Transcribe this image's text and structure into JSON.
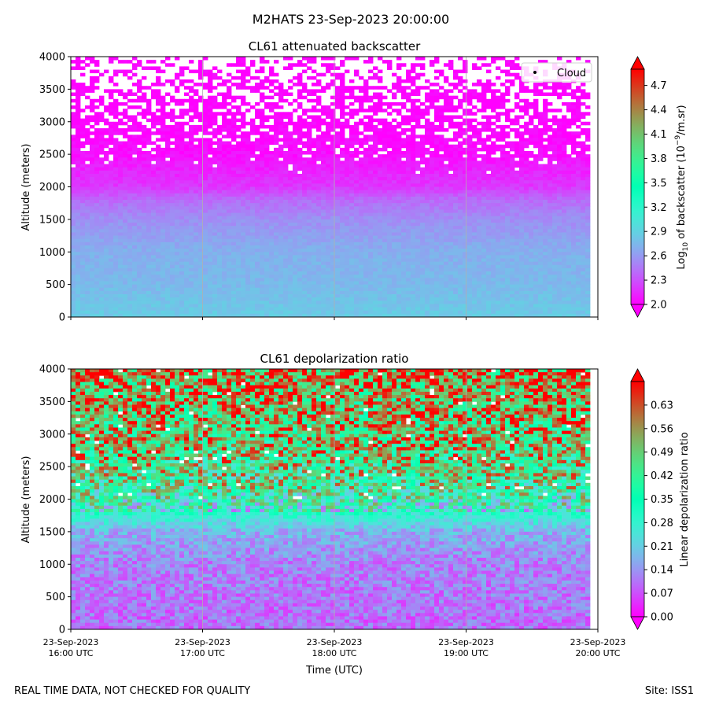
{
  "figure": {
    "title": "M2HATS 23-Sep-2023 20:00:00",
    "footer_left": "REAL TIME DATA, NOT CHECKED FOR QUALITY",
    "footer_right": "Site: ISS1"
  },
  "chart_data": [
    {
      "type": "heatmap",
      "title": "CL61 attenuated backscatter",
      "xlabel": "",
      "ylabel": "Altitude (meters)",
      "ylim": [
        0,
        4000
      ],
      "yticks": [
        "0",
        "500",
        "1000",
        "1500",
        "2000",
        "2500",
        "3000",
        "3500",
        "4000"
      ],
      "xticks": [],
      "grid": "vertical",
      "legend": {
        "position": "top-right",
        "entries": [
          {
            "label": "Cloud",
            "marker": "dot"
          }
        ]
      },
      "colorbar": {
        "label_prefix": "Log",
        "label_sub": "10",
        "label_mid": " of backscatter (10",
        "label_sup": "−9",
        "label_suffix": "/m.sr)",
        "range": [
          2.0,
          4.9
        ],
        "ticks": [
          "2.0",
          "2.3",
          "2.6",
          "2.9",
          "3.2",
          "3.5",
          "3.8",
          "4.1",
          "4.4",
          "4.7"
        ],
        "colormap": "rainbow",
        "extend": "both"
      },
      "approx_profile": [
        {
          "altitude": 0,
          "value": 2.85
        },
        {
          "altitude": 500,
          "value": 2.75
        },
        {
          "altitude": 1000,
          "value": 2.7
        },
        {
          "altitude": 1500,
          "value": 2.55
        },
        {
          "altitude": 1800,
          "value": 2.4
        },
        {
          "altitude": 2000,
          "value": 2.2
        },
        {
          "altitude": 2500,
          "value": 2.05
        },
        {
          "altitude": 3000,
          "value": 2.0
        },
        {
          "altitude": 4000,
          "value": 2.0
        }
      ]
    },
    {
      "type": "heatmap",
      "title": "CL61 depolarization ratio",
      "xlabel": "Time (UTC)",
      "ylabel": "Altitude (meters)",
      "ylim": [
        0,
        4000
      ],
      "yticks": [
        "0",
        "500",
        "1000",
        "1500",
        "2000",
        "2500",
        "3000",
        "3500",
        "4000"
      ],
      "xticks": [
        {
          "date": "23-Sep-2023",
          "time": "16:00 UTC"
        },
        {
          "date": "23-Sep-2023",
          "time": "17:00 UTC"
        },
        {
          "date": "23-Sep-2023",
          "time": "18:00 UTC"
        },
        {
          "date": "23-Sep-2023",
          "time": "19:00 UTC"
        },
        {
          "date": "23-Sep-2023",
          "time": "20:00 UTC"
        }
      ],
      "grid": "vertical",
      "colorbar": {
        "label": "Linear depolarization ratio",
        "range": [
          0.0,
          0.7
        ],
        "ticks": [
          "0.00",
          "0.07",
          "0.14",
          "0.21",
          "0.28",
          "0.35",
          "0.42",
          "0.49",
          "0.56",
          "0.63"
        ],
        "colormap": "rainbow",
        "extend": "both"
      },
      "approx_profile": [
        {
          "altitude": 0,
          "value": 0.1
        },
        {
          "altitude": 1000,
          "value": 0.12
        },
        {
          "altitude": 1500,
          "value": 0.17
        },
        {
          "altitude": 1800,
          "value": 0.3
        },
        {
          "altitude": 2200,
          "value": 0.42
        },
        {
          "altitude": 2800,
          "value": 0.5
        },
        {
          "altitude": 3500,
          "value": 0.55
        },
        {
          "altitude": 4000,
          "value": 0.6
        }
      ]
    }
  ]
}
